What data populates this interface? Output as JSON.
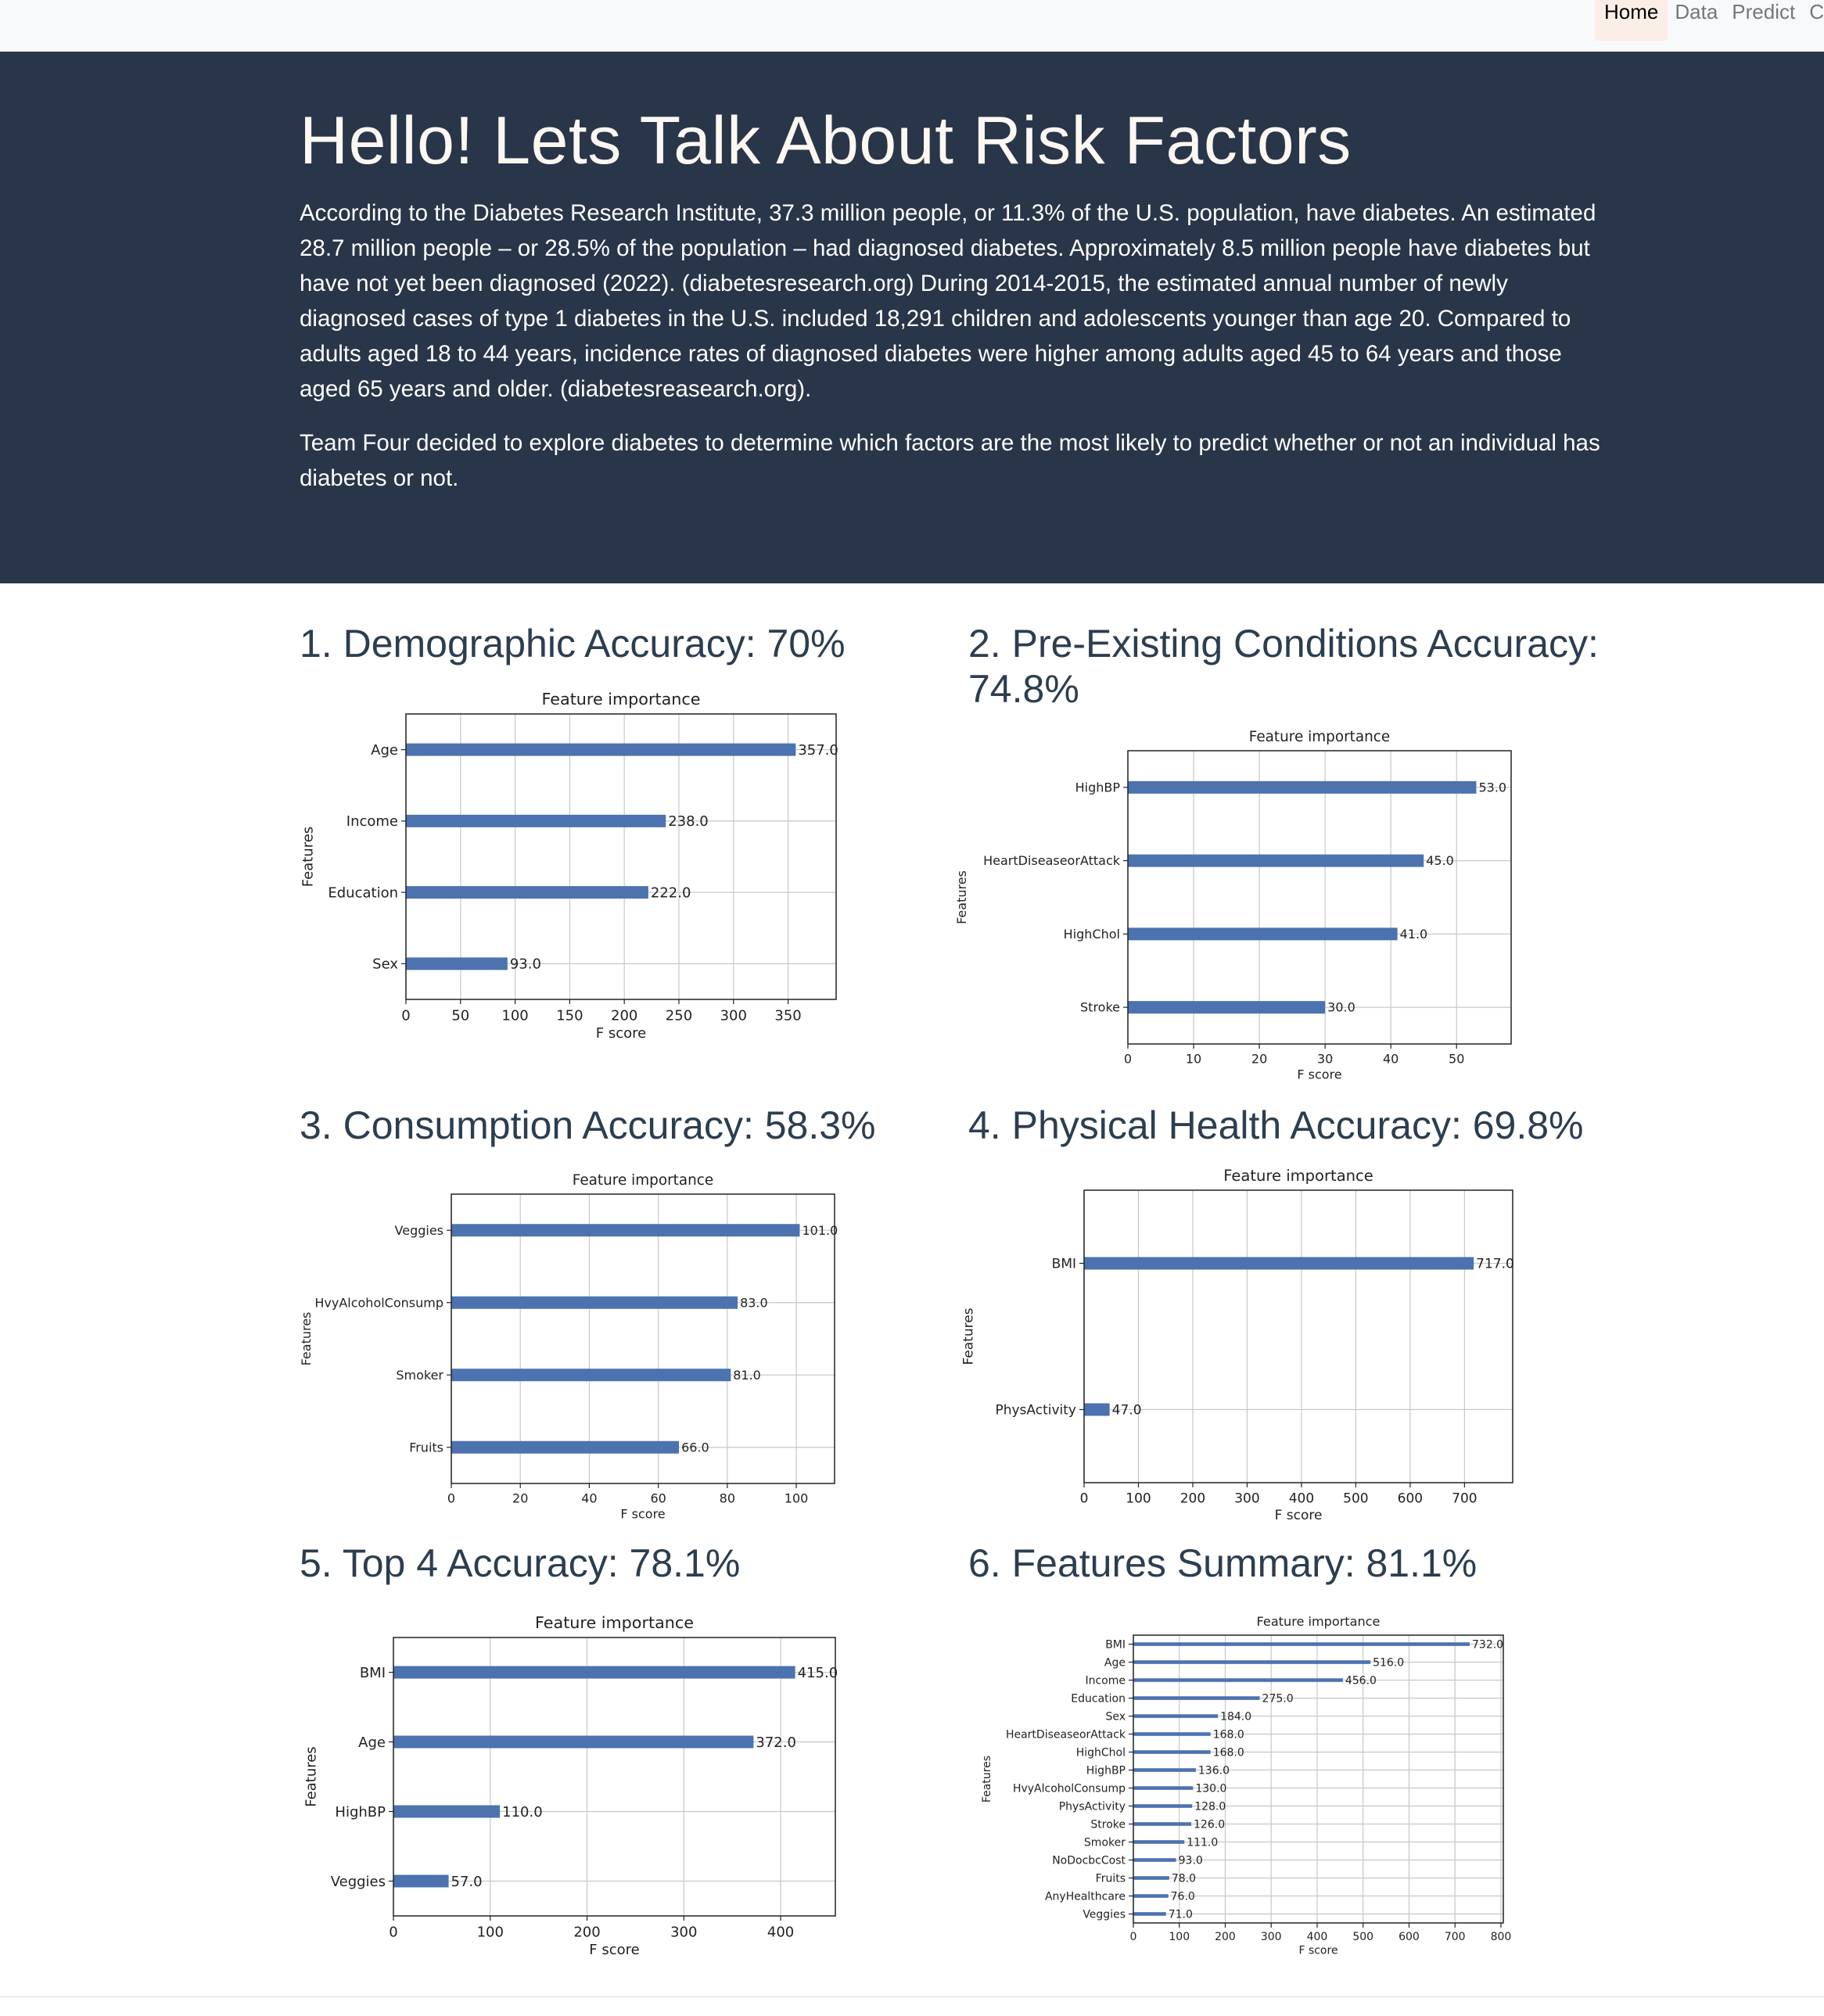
{
  "nav": {
    "items": [
      {
        "label": "Home",
        "active": true
      },
      {
        "label": "Data",
        "active": false
      },
      {
        "label": "Predict",
        "active": false
      },
      {
        "label": "C",
        "active": false
      }
    ]
  },
  "hero": {
    "title": "Hello! Lets Talk About Risk Factors",
    "paragraph1": "According to the Diabetes Research Institute, 37.3 million people, or 11.3% of the U.S. population, have diabetes. An estimated 28.7 million people – or 28.5% of the population – had diagnosed diabetes. Approximately 8.5 million people have diabetes but have not yet been diagnosed (2022). (diabetesresearch.org) During 2014-2015, the estimated annual number of newly diagnosed cases of type 1 diabetes in the U.S. included 18,291 children and adolescents younger than age 20. Compared to adults aged 18 to 44 years, incidence rates of diagnosed diabetes were higher among adults aged 45 to 64 years and those aged 65 years and older. (diabetesreasearch.org).",
    "paragraph2": "Team Four decided to explore diabetes to determine which factors are the most likely to predict whether or not an individual has diabetes or not."
  },
  "sections": [
    {
      "title": "1. Demographic Accuracy: 70%"
    },
    {
      "title": "2. Pre-Existing Conditions Accuracy: 74.8%"
    },
    {
      "title": "3. Consumption Accuracy: 58.3%"
    },
    {
      "title": "4. Physical Health Accuracy: 69.8%"
    },
    {
      "title": "5. Top 4 Accuracy: 78.1%"
    },
    {
      "title": "6. Features Summary: 81.1%"
    }
  ],
  "chart_data": [
    {
      "type": "bar",
      "orientation": "horizontal",
      "title": "Feature importance",
      "xlabel": "F score",
      "ylabel": "Features",
      "categories": [
        "Age",
        "Income",
        "Education",
        "Sex"
      ],
      "values": [
        357.0,
        238.0,
        222.0,
        93.0
      ],
      "value_labels": [
        "357.0",
        "238.0",
        "222.0",
        "93.0"
      ],
      "xlim": [
        0,
        394
      ],
      "xticks": [
        0,
        50,
        100,
        150,
        200,
        250,
        300,
        350
      ],
      "grid": true,
      "bar_color": "#4c72b0"
    },
    {
      "type": "bar",
      "orientation": "horizontal",
      "title": "Feature importance",
      "xlabel": "F score",
      "ylabel": "Features",
      "categories": [
        "HighBP",
        "HeartDiseaseorAttack",
        "HighChol",
        "Stroke"
      ],
      "values": [
        53.0,
        45.0,
        41.0,
        30.0
      ],
      "value_labels": [
        "53.0",
        "45.0",
        "41.0",
        "30.0"
      ],
      "xlim": [
        0,
        58.3
      ],
      "xticks": [
        0,
        10,
        20,
        30,
        40,
        50
      ],
      "grid": true,
      "bar_color": "#4c72b0"
    },
    {
      "type": "bar",
      "orientation": "horizontal",
      "title": "Feature importance",
      "xlabel": "F score",
      "ylabel": "Features",
      "categories": [
        "Veggies",
        "HvyAlcoholConsump",
        "Smoker",
        "Fruits"
      ],
      "values": [
        101.0,
        83.0,
        81.0,
        66.0
      ],
      "value_labels": [
        "101.0",
        "83.0",
        "81.0",
        "66.0"
      ],
      "xlim": [
        0,
        111.1
      ],
      "xticks": [
        0,
        20,
        40,
        60,
        80,
        100
      ],
      "grid": true,
      "bar_color": "#4c72b0"
    },
    {
      "type": "bar",
      "orientation": "horizontal",
      "title": "Feature importance",
      "xlabel": "F score",
      "ylabel": "Features",
      "categories": [
        "BMI",
        "PhysActivity"
      ],
      "values": [
        717.0,
        47.0
      ],
      "value_labels": [
        "717.0",
        "47.0"
      ],
      "xlim": [
        0,
        788.7
      ],
      "xticks": [
        0,
        100,
        200,
        300,
        400,
        500,
        600,
        700
      ],
      "grid": true,
      "bar_color": "#4c72b0"
    },
    {
      "type": "bar",
      "orientation": "horizontal",
      "title": "Feature importance",
      "xlabel": "F score",
      "ylabel": "Features",
      "categories": [
        "BMI",
        "Age",
        "HighBP",
        "Veggies"
      ],
      "values": [
        415.0,
        372.0,
        110.0,
        57.0
      ],
      "value_labels": [
        "415.0",
        "372.0",
        "110.0",
        "57.0"
      ],
      "xlim": [
        0,
        456.5
      ],
      "xticks": [
        0,
        100,
        200,
        300,
        400
      ],
      "grid": true,
      "bar_color": "#4c72b0"
    },
    {
      "type": "bar",
      "orientation": "horizontal",
      "title": "Feature importance",
      "xlabel": "F score",
      "ylabel": "Features",
      "categories": [
        "BMI",
        "Age",
        "Income",
        "Education",
        "Sex",
        "HeartDiseaseorAttack",
        "HighChol",
        "HighBP",
        "HvyAlcoholConsump",
        "PhysActivity",
        "Stroke",
        "Smoker",
        "NoDocbcCost",
        "Fruits",
        "AnyHealthcare",
        "Veggies"
      ],
      "values": [
        732.0,
        516.0,
        456.0,
        275.0,
        184.0,
        168.0,
        168.0,
        136.0,
        130.0,
        128.0,
        126.0,
        111.0,
        93.0,
        78.0,
        76.0,
        71.0
      ],
      "value_labels": [
        "732.0",
        "516.0",
        "456.0",
        "275.0",
        "184.0",
        "168.0",
        "168.0",
        "136.0",
        "130.0",
        "128.0",
        "126.0",
        "111.0",
        "93.0",
        "78.0",
        "76.0",
        "71.0"
      ],
      "xlim": [
        0,
        805.2
      ],
      "xticks": [
        0,
        100,
        200,
        300,
        400,
        500,
        600,
        700,
        800
      ],
      "grid": true,
      "bar_color": "#4c72b0"
    }
  ]
}
